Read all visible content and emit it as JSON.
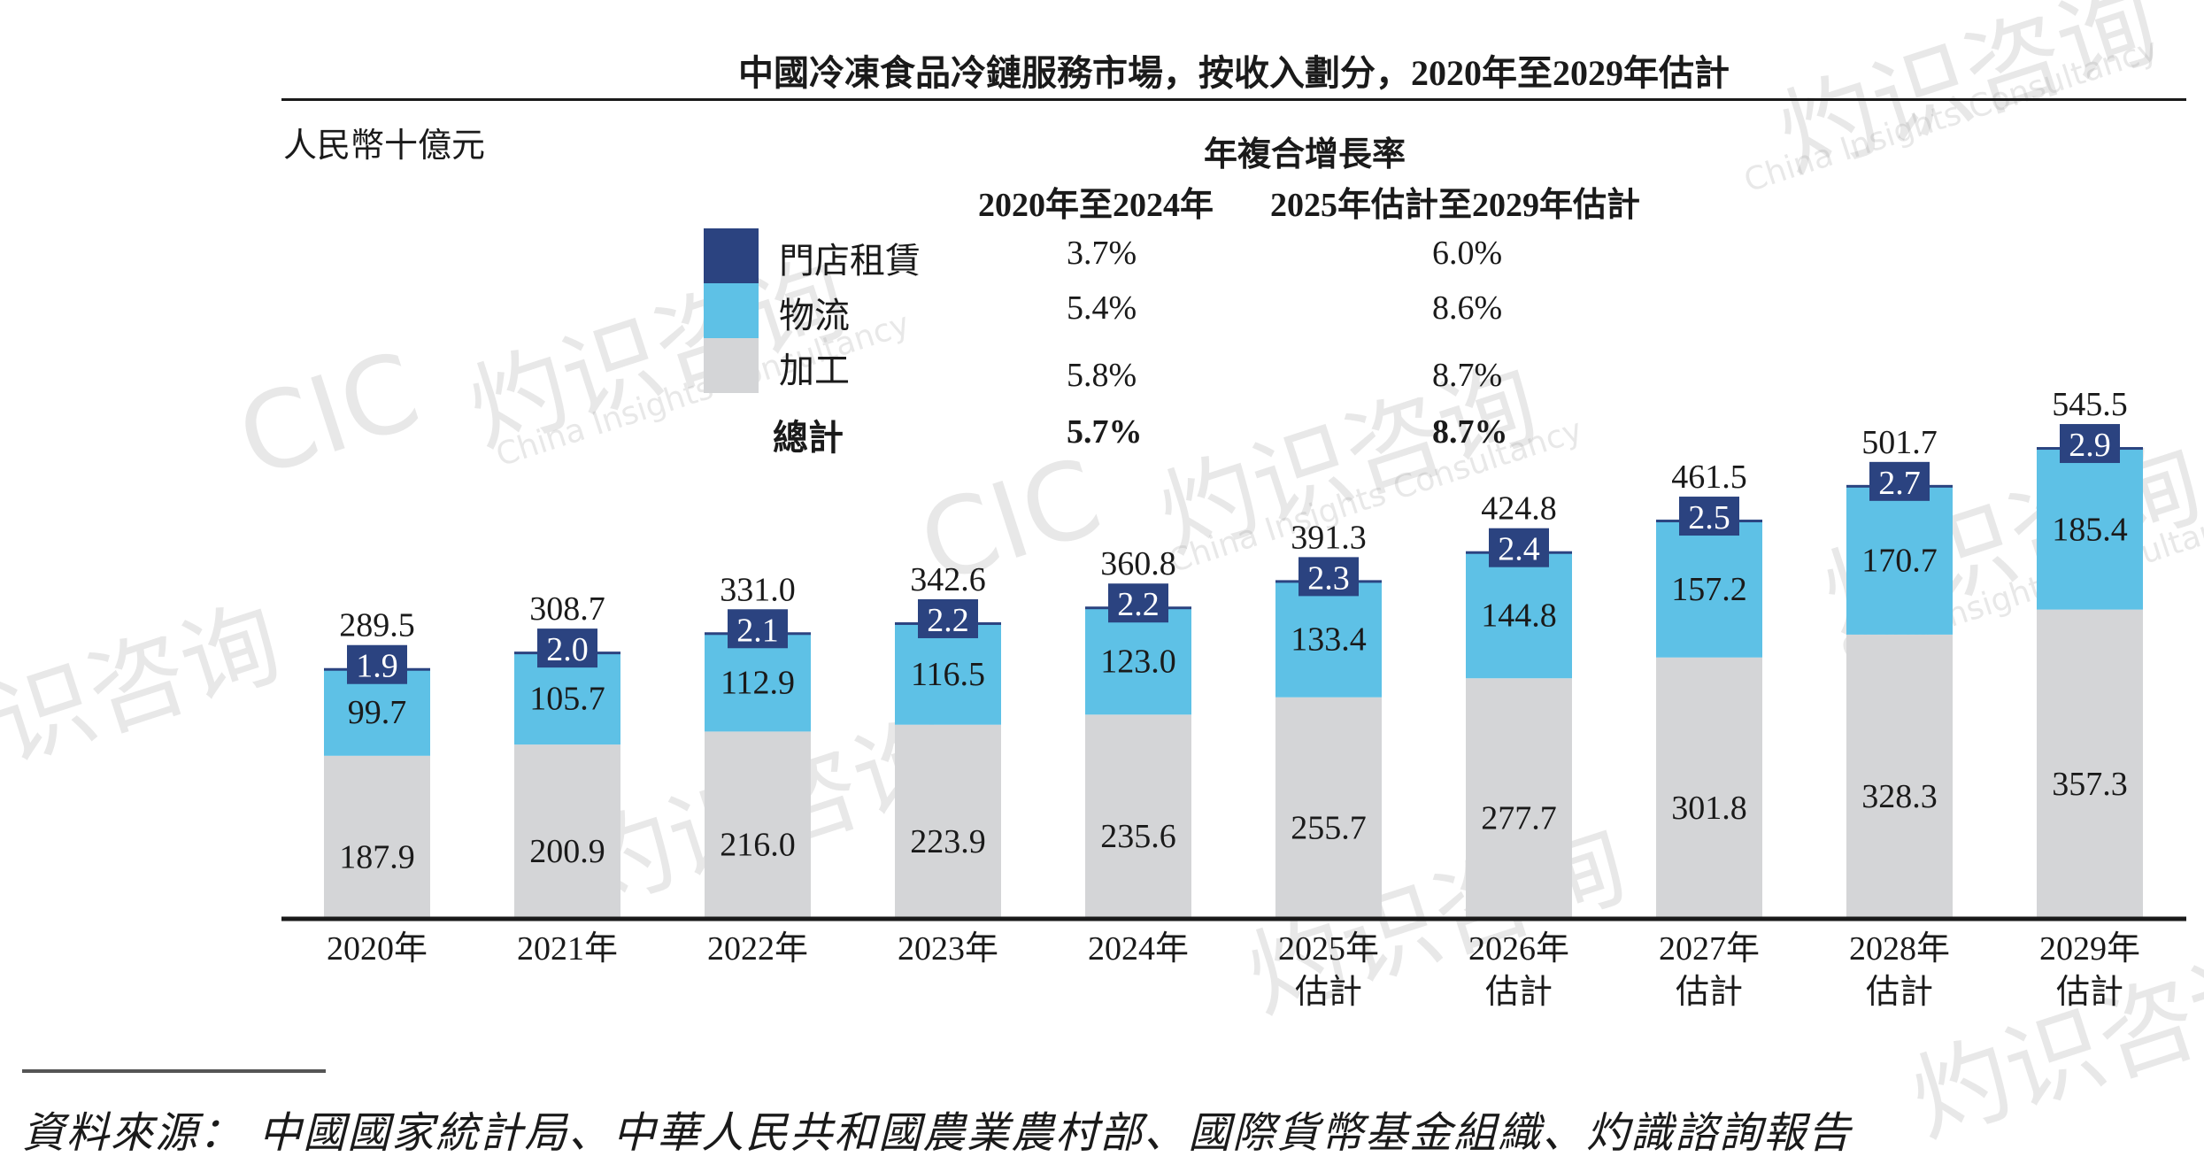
{
  "chart_data": {
    "type": "bar",
    "stacked": true,
    "title": "中國冷凍食品冷鏈服務市場，按收入劃分，2020年至2029年估計",
    "ylabel": "人民幣十億元",
    "xlabel": "",
    "categories": [
      {
        "year": "2020年",
        "sub": ""
      },
      {
        "year": "2021年",
        "sub": ""
      },
      {
        "year": "2022年",
        "sub": ""
      },
      {
        "year": "2023年",
        "sub": ""
      },
      {
        "year": "2024年",
        "sub": ""
      },
      {
        "year": "2025年",
        "sub": "估計"
      },
      {
        "year": "2026年",
        "sub": "估計"
      },
      {
        "year": "2027年",
        "sub": "估計"
      },
      {
        "year": "2028年",
        "sub": "估計"
      },
      {
        "year": "2029年",
        "sub": "估計"
      }
    ],
    "series": [
      {
        "name": "加工",
        "color": "#d4d5d7",
        "values": [
          187.9,
          200.9,
          216.0,
          223.9,
          235.6,
          255.7,
          277.7,
          301.8,
          328.3,
          357.3
        ]
      },
      {
        "name": "物流",
        "color": "#5ec1e6",
        "values": [
          99.7,
          105.7,
          112.9,
          116.5,
          123.0,
          133.4,
          144.8,
          157.2,
          170.7,
          185.4
        ]
      },
      {
        "name": "門店租賃",
        "color": "#2b4380",
        "values": [
          1.9,
          2.0,
          2.1,
          2.2,
          2.2,
          2.3,
          2.4,
          2.5,
          2.7,
          2.9
        ]
      }
    ],
    "totals": [
      289.5,
      308.7,
      331.0,
      342.6,
      360.8,
      391.3,
      424.8,
      461.5,
      501.7,
      545.5
    ],
    "ylim": [
      0,
      560
    ],
    "grid": false,
    "legend_placement": "top-center",
    "cagr_table": {
      "title": "年複合增長率",
      "columns": [
        "2020年至2024年",
        "2025年估計至2029年估計"
      ],
      "rows": [
        {
          "label": "門店租賃",
          "values": [
            "3.7%",
            "6.0%"
          ],
          "bold": false
        },
        {
          "label": "物流",
          "values": [
            "5.4%",
            "8.6%"
          ],
          "bold": false
        },
        {
          "label": "加工",
          "values": [
            "5.8%",
            "8.7%"
          ],
          "bold": false
        },
        {
          "label": "總計",
          "values": [
            "5.7%",
            "8.7%"
          ],
          "bold": true
        }
      ]
    }
  },
  "source": "資料來源： 中國國家統計局、中華人民共和國農業農村部、國際貨幣基金組織、灼識諮詢報告",
  "watermark": {
    "cn": "灼识咨询",
    "en": "China Insights Consultancy",
    "logo": "CIC"
  }
}
